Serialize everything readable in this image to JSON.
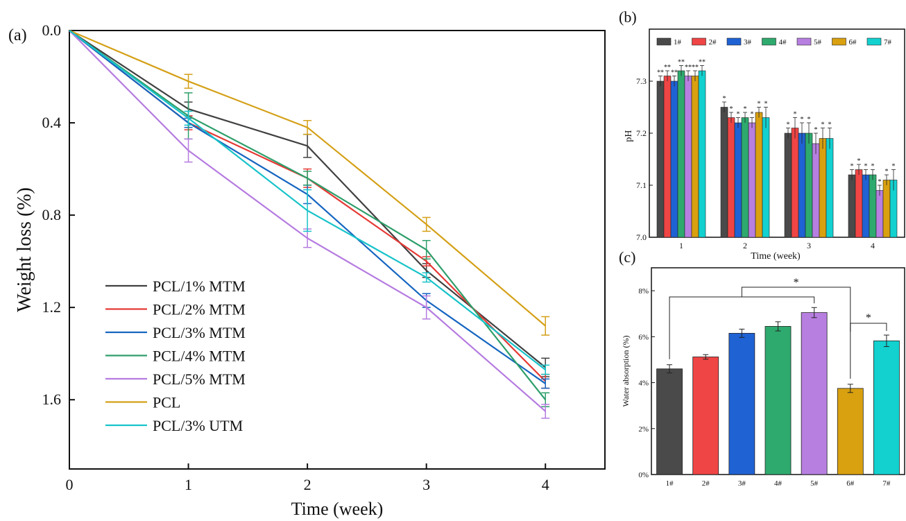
{
  "chart_data": [
    {
      "panel_label": "(a)",
      "type": "line",
      "xlabel": "Time (week)",
      "ylabel": "Weight loss (%)",
      "x": [
        0,
        1,
        2,
        3,
        4
      ],
      "xlim": [
        0,
        4.5
      ],
      "ylim": [
        1.9,
        0.0
      ],
      "y_inverted": true,
      "x_ticks": [
        "0",
        "1",
        "2",
        "3",
        "4"
      ],
      "y_ticks": [
        "0.0",
        "0.4",
        "0.8",
        "1.2",
        "1.6"
      ],
      "legend_position": "bottom-left",
      "series": [
        {
          "name": "PCL/1% MTM",
          "color": "#404040",
          "values": [
            0,
            0.34,
            0.5,
            1.04,
            1.46
          ],
          "errors": [
            0,
            0.03,
            0.05,
            0.03,
            0.04
          ]
        },
        {
          "name": "PCL/2% MTM",
          "color": "#e53935",
          "values": [
            0,
            0.4,
            0.64,
            1.0,
            1.52
          ],
          "errors": [
            0,
            0.03,
            0.04,
            0.02,
            0.03
          ]
        },
        {
          "name": "PCL/3% MTM",
          "color": "#1565c0",
          "values": [
            0,
            0.4,
            0.71,
            1.17,
            1.53
          ],
          "errors": [
            0,
            0.02,
            0.04,
            0.03,
            0.02
          ]
        },
        {
          "name": "PCL/4% MTM",
          "color": "#2e9e6a",
          "values": [
            0,
            0.37,
            0.64,
            0.95,
            1.6
          ],
          "errors": [
            0,
            0.1,
            0.03,
            0.04,
            0.03
          ]
        },
        {
          "name": "PCL/5% MTM",
          "color": "#b57be0",
          "values": [
            0,
            0.52,
            0.9,
            1.2,
            1.65
          ],
          "errors": [
            0,
            0.05,
            0.04,
            0.05,
            0.03
          ]
        },
        {
          "name": "PCL",
          "color": "#d4a017",
          "values": [
            0,
            0.22,
            0.42,
            0.84,
            1.28
          ],
          "errors": [
            0,
            0.03,
            0.03,
            0.03,
            0.04
          ]
        },
        {
          "name": "PCL/3% UTM",
          "color": "#17c3c9",
          "values": [
            0,
            0.38,
            0.78,
            1.07,
            1.47
          ],
          "errors": [
            0,
            0.03,
            0.09,
            0.02,
            0.02
          ]
        }
      ]
    },
    {
      "panel_label": "(b)",
      "type": "bar",
      "xlabel": "Time (week)",
      "ylabel": "pH",
      "categories": [
        "1",
        "2",
        "3",
        "4"
      ],
      "ylim": [
        7.0,
        7.4
      ],
      "y_ticks": [
        "7.0",
        "7.1",
        "7.2",
        "7.3"
      ],
      "legend_position": "top",
      "series": [
        {
          "name": "1#",
          "color": "#4a4a4a",
          "values": [
            7.3,
            7.25,
            7.2,
            7.12
          ],
          "errors": [
            0.01,
            0.01,
            0.01,
            0.01
          ],
          "marks": [
            "**",
            "*",
            "*",
            "*"
          ]
        },
        {
          "name": "2#",
          "color": "#f04545",
          "values": [
            7.31,
            7.23,
            7.21,
            7.13
          ],
          "errors": [
            0.01,
            0.01,
            0.02,
            0.01
          ],
          "marks": [
            "**",
            "*",
            "*",
            "*"
          ]
        },
        {
          "name": "3#",
          "color": "#1f62d4",
          "values": [
            7.3,
            7.22,
            7.2,
            7.12
          ],
          "errors": [
            0.01,
            0.01,
            0.02,
            0.01
          ],
          "marks": [
            "**",
            "*",
            "*",
            "*"
          ]
        },
        {
          "name": "4#",
          "color": "#2eaa6e",
          "values": [
            7.32,
            7.23,
            7.2,
            7.12
          ],
          "errors": [
            0.01,
            0.01,
            0.02,
            0.01
          ],
          "marks": [
            "**",
            "*",
            "*",
            "*"
          ]
        },
        {
          "name": "5#",
          "color": "#b77fe0",
          "values": [
            7.31,
            7.22,
            7.18,
            7.09
          ],
          "errors": [
            0.01,
            0.01,
            0.02,
            0.01
          ],
          "marks": [
            "**",
            "*",
            "*",
            "*"
          ]
        },
        {
          "name": "6#",
          "color": "#d9a010",
          "values": [
            7.31,
            7.24,
            7.19,
            7.11
          ],
          "errors": [
            0.01,
            0.01,
            0.02,
            0.01
          ],
          "marks": [
            "**",
            "*",
            "*",
            "*"
          ]
        },
        {
          "name": "7#",
          "color": "#12d1cf",
          "values": [
            7.32,
            7.23,
            7.19,
            7.11
          ],
          "errors": [
            0.01,
            0.02,
            0.02,
            0.02
          ],
          "marks": [
            "**",
            "*",
            "*",
            "*"
          ]
        }
      ]
    },
    {
      "panel_label": "(c)",
      "type": "bar",
      "xlabel": "",
      "ylabel": "Water absorption (%)",
      "categories": [
        "1#",
        "2#",
        "3#",
        "4#",
        "5#",
        "6#",
        "7#"
      ],
      "colors": [
        "#4a4a4a",
        "#f04545",
        "#1f62d4",
        "#2eaa6e",
        "#b77fe0",
        "#d9a010",
        "#12d1cf"
      ],
      "values": [
        4.6,
        5.12,
        6.15,
        6.45,
        7.05,
        3.75,
        5.82
      ],
      "errors": [
        0.18,
        0.1,
        0.18,
        0.2,
        0.22,
        0.18,
        0.25
      ],
      "ylim": [
        0,
        9
      ],
      "y_ticks": [
        "0%",
        "2%",
        "4%",
        "6%",
        "8%"
      ],
      "significance": [
        {
          "label": "*",
          "from_group": [
            "1#",
            "2#",
            "3#",
            "4#",
            "5#"
          ],
          "to": "6#"
        },
        {
          "label": "*",
          "from": "6#",
          "to": "7#"
        }
      ]
    }
  ]
}
